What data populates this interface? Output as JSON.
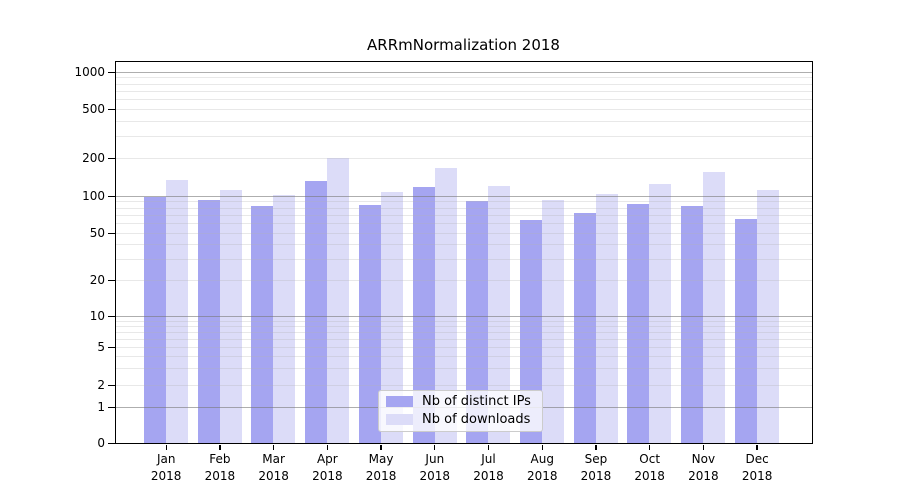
{
  "chart_data": {
    "type": "bar",
    "title": "ARRmNormalization 2018",
    "year": "2018",
    "categories": [
      "Jan",
      "Feb",
      "Mar",
      "Apr",
      "May",
      "Jun",
      "Jul",
      "Aug",
      "Sep",
      "Oct",
      "Nov",
      "Dec"
    ],
    "series": [
      {
        "name": "Nb of distinct IPs",
        "color": "#a5a5f1",
        "values": [
          97,
          92,
          83,
          130,
          84,
          117,
          91,
          63,
          73,
          85,
          82,
          65
        ]
      },
      {
        "name": "Nb of downloads",
        "color": "#dcdcf8",
        "values": [
          133,
          112,
          102,
          199,
          107,
          167,
          120,
          93,
          104,
          124,
          154,
          112
        ]
      }
    ],
    "yscale": "symlog",
    "y_ticks": [
      0,
      1,
      2,
      5,
      10,
      20,
      50,
      100,
      200,
      500,
      1000
    ],
    "y_tick_labels": [
      "0",
      "1",
      "2",
      "5",
      "10",
      "20",
      "50",
      "100",
      "200",
      "500",
      "1000"
    ],
    "ylim": [
      0,
      1150
    ],
    "xlabel": "",
    "ylabel": "",
    "grid": true,
    "legend_position": "lower center"
  }
}
